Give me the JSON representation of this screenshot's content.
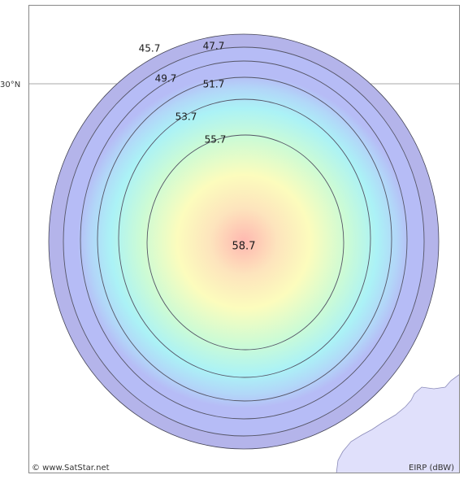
{
  "map": {
    "latitude_label": "30°N",
    "center_value": "58.7",
    "contours": [
      {
        "value": "45.7",
        "label": "45.7"
      },
      {
        "value": "47.7",
        "label": "47.7"
      },
      {
        "value": "49.7",
        "label": "49.7"
      },
      {
        "value": "51.7",
        "label": "51.7"
      },
      {
        "value": "53.7",
        "label": "53.7"
      },
      {
        "value": "55.7",
        "label": "55.7"
      }
    ],
    "colors": {
      "outer_ring": "#b4b4ea",
      "land": "#e0e0fb",
      "contour_line": "#555566",
      "frame": "#888888"
    }
  },
  "footer": {
    "copyright": "© www.SatStar.net",
    "unit_label": "EIRP (dBW)"
  }
}
